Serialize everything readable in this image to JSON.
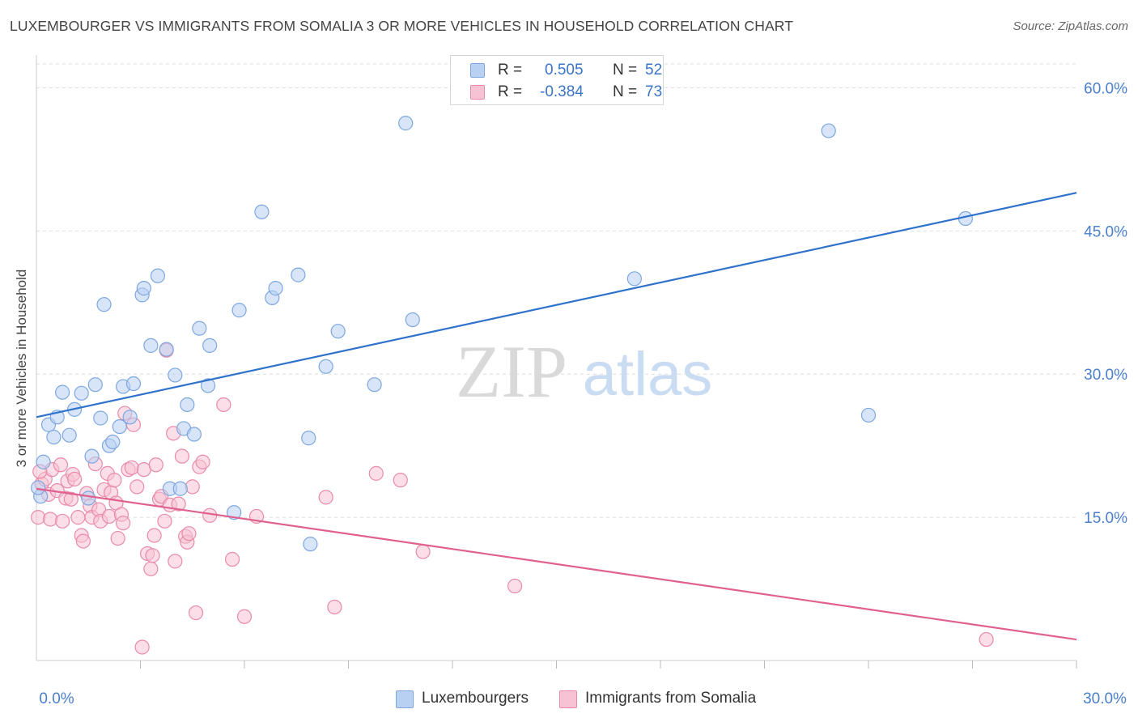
{
  "title": "LUXEMBOURGER VS IMMIGRANTS FROM SOMALIA 3 OR MORE VEHICLES IN HOUSEHOLD CORRELATION CHART",
  "source": "Source: ZipAtlas.com",
  "watermark": {
    "zip": "ZIP",
    "atlas": "atlas"
  },
  "legend": {
    "series1": {
      "r_label": "R =",
      "r_value": "0.505",
      "n_label": "N =",
      "n_value": "52"
    },
    "series2": {
      "r_label": "R =",
      "r_value": "-0.384",
      "n_label": "N =",
      "n_value": "73"
    }
  },
  "colors": {
    "blue_fill": "#b8d0f2",
    "blue_stroke": "#7ea7e0",
    "blue_line": "#2f72cc",
    "blue_text": "#3a74c7",
    "pink_fill": "#f7c3d4",
    "pink_stroke": "#e98aa9",
    "pink_line": "#e0608f",
    "pink_text": "#e0608f",
    "grid": "#dddddd",
    "axis_tick_text": "#4a7fcc"
  },
  "chart_data": {
    "type": "scatter",
    "title": "LUXEMBOURGER VS IMMIGRANTS FROM SOMALIA 3 OR MORE VEHICLES IN HOUSEHOLD CORRELATION CHART",
    "xlabel": "",
    "ylabel": "3 or more Vehicles in Household",
    "xlim": [
      0,
      30
    ],
    "ylim": [
      0,
      62.5
    ],
    "x_tick_labels": [
      {
        "value": 0,
        "label": "0.0%"
      },
      {
        "value": 30,
        "label": "30.0%"
      }
    ],
    "y_tick_labels": [
      {
        "value": 15,
        "label": "15.0%"
      },
      {
        "value": 30,
        "label": "30.0%"
      },
      {
        "value": 45,
        "label": "45.0%"
      },
      {
        "value": 60,
        "label": "60.0%"
      }
    ],
    "grid": true,
    "legend_position": "top-center",
    "series": [
      {
        "name": "Luxembourgers",
        "trend": {
          "x": [
            0,
            30
          ],
          "y": [
            25.5,
            49.0
          ]
        },
        "points": [
          [
            0.2,
            20.8
          ],
          [
            0.35,
            24.7
          ],
          [
            0.5,
            23.4
          ],
          [
            0.6,
            25.5
          ],
          [
            0.75,
            28.1
          ],
          [
            0.95,
            23.6
          ],
          [
            1.1,
            26.3
          ],
          [
            1.3,
            28.0
          ],
          [
            1.5,
            17.0
          ],
          [
            1.6,
            21.4
          ],
          [
            1.7,
            28.9
          ],
          [
            1.85,
            25.4
          ],
          [
            1.95,
            37.3
          ],
          [
            2.1,
            22.5
          ],
          [
            2.2,
            22.9
          ],
          [
            2.4,
            24.5
          ],
          [
            2.5,
            28.7
          ],
          [
            2.7,
            25.5
          ],
          [
            2.8,
            29.0
          ],
          [
            3.05,
            38.3
          ],
          [
            3.1,
            39.0
          ],
          [
            3.3,
            33.0
          ],
          [
            3.5,
            40.3
          ],
          [
            3.75,
            32.6
          ],
          [
            3.85,
            18.0
          ],
          [
            4.0,
            29.9
          ],
          [
            4.15,
            18.0
          ],
          [
            4.25,
            24.3
          ],
          [
            4.35,
            26.8
          ],
          [
            4.55,
            23.7
          ],
          [
            4.7,
            34.8
          ],
          [
            4.95,
            28.8
          ],
          [
            5.0,
            33.0
          ],
          [
            5.7,
            15.5
          ],
          [
            5.85,
            36.7
          ],
          [
            6.5,
            47.0
          ],
          [
            6.8,
            38.0
          ],
          [
            6.9,
            39.0
          ],
          [
            7.55,
            40.4
          ],
          [
            7.85,
            23.3
          ],
          [
            7.9,
            12.2
          ],
          [
            8.35,
            30.8
          ],
          [
            8.7,
            34.5
          ],
          [
            9.75,
            28.9
          ],
          [
            10.65,
            56.3
          ],
          [
            10.85,
            35.7
          ],
          [
            17.25,
            40.0
          ],
          [
            22.85,
            55.5
          ],
          [
            24.0,
            25.7
          ],
          [
            26.8,
            46.3
          ],
          [
            0.12,
            17.2
          ],
          [
            0.05,
            18.1
          ]
        ]
      },
      {
        "name": "Immigrants from Somalia",
        "trend": {
          "x": [
            0,
            30
          ],
          "y": [
            18.0,
            2.2
          ]
        },
        "points": [
          [
            0.05,
            15.0
          ],
          [
            0.15,
            18.5
          ],
          [
            0.25,
            19.0
          ],
          [
            0.35,
            17.4
          ],
          [
            0.45,
            20.0
          ],
          [
            0.4,
            14.8
          ],
          [
            0.6,
            17.8
          ],
          [
            0.7,
            20.5
          ],
          [
            0.75,
            14.6
          ],
          [
            0.85,
            17.0
          ],
          [
            0.9,
            18.8
          ],
          [
            1.0,
            16.9
          ],
          [
            1.05,
            19.5
          ],
          [
            1.1,
            19.0
          ],
          [
            1.2,
            15.0
          ],
          [
            1.3,
            13.1
          ],
          [
            1.35,
            12.5
          ],
          [
            1.45,
            17.5
          ],
          [
            1.55,
            16.2
          ],
          [
            1.6,
            15.0
          ],
          [
            1.7,
            20.6
          ],
          [
            1.8,
            15.8
          ],
          [
            1.85,
            14.6
          ],
          [
            1.95,
            17.9
          ],
          [
            2.05,
            19.6
          ],
          [
            2.1,
            15.1
          ],
          [
            2.15,
            17.6
          ],
          [
            2.25,
            18.9
          ],
          [
            2.3,
            16.5
          ],
          [
            2.35,
            12.8
          ],
          [
            2.45,
            15.3
          ],
          [
            2.5,
            14.4
          ],
          [
            2.55,
            25.9
          ],
          [
            2.65,
            20.0
          ],
          [
            2.75,
            20.2
          ],
          [
            2.8,
            24.7
          ],
          [
            2.9,
            18.2
          ],
          [
            3.05,
            1.4
          ],
          [
            3.1,
            20.0
          ],
          [
            3.2,
            11.2
          ],
          [
            3.3,
            9.6
          ],
          [
            3.35,
            11.0
          ],
          [
            3.4,
            13.1
          ],
          [
            3.45,
            20.5
          ],
          [
            3.55,
            16.9
          ],
          [
            3.6,
            17.2
          ],
          [
            3.7,
            14.6
          ],
          [
            3.75,
            32.5
          ],
          [
            3.85,
            16.3
          ],
          [
            3.95,
            23.8
          ],
          [
            4.0,
            10.4
          ],
          [
            4.1,
            16.4
          ],
          [
            4.2,
            21.4
          ],
          [
            4.3,
            13.0
          ],
          [
            4.35,
            12.4
          ],
          [
            4.4,
            13.3
          ],
          [
            4.5,
            18.2
          ],
          [
            4.6,
            5.0
          ],
          [
            4.7,
            20.3
          ],
          [
            4.8,
            20.8
          ],
          [
            5.0,
            15.2
          ],
          [
            5.4,
            26.8
          ],
          [
            5.65,
            10.6
          ],
          [
            6.0,
            4.6
          ],
          [
            6.35,
            15.1
          ],
          [
            8.35,
            17.1
          ],
          [
            8.6,
            5.6
          ],
          [
            9.8,
            19.6
          ],
          [
            10.5,
            18.9
          ],
          [
            11.15,
            11.4
          ],
          [
            13.8,
            7.8
          ],
          [
            27.4,
            2.2
          ],
          [
            0.1,
            19.8
          ]
        ]
      }
    ]
  },
  "bottom_legend": {
    "series1_label": "Luxembourgers",
    "series2_label": "Immigrants from Somalia"
  }
}
